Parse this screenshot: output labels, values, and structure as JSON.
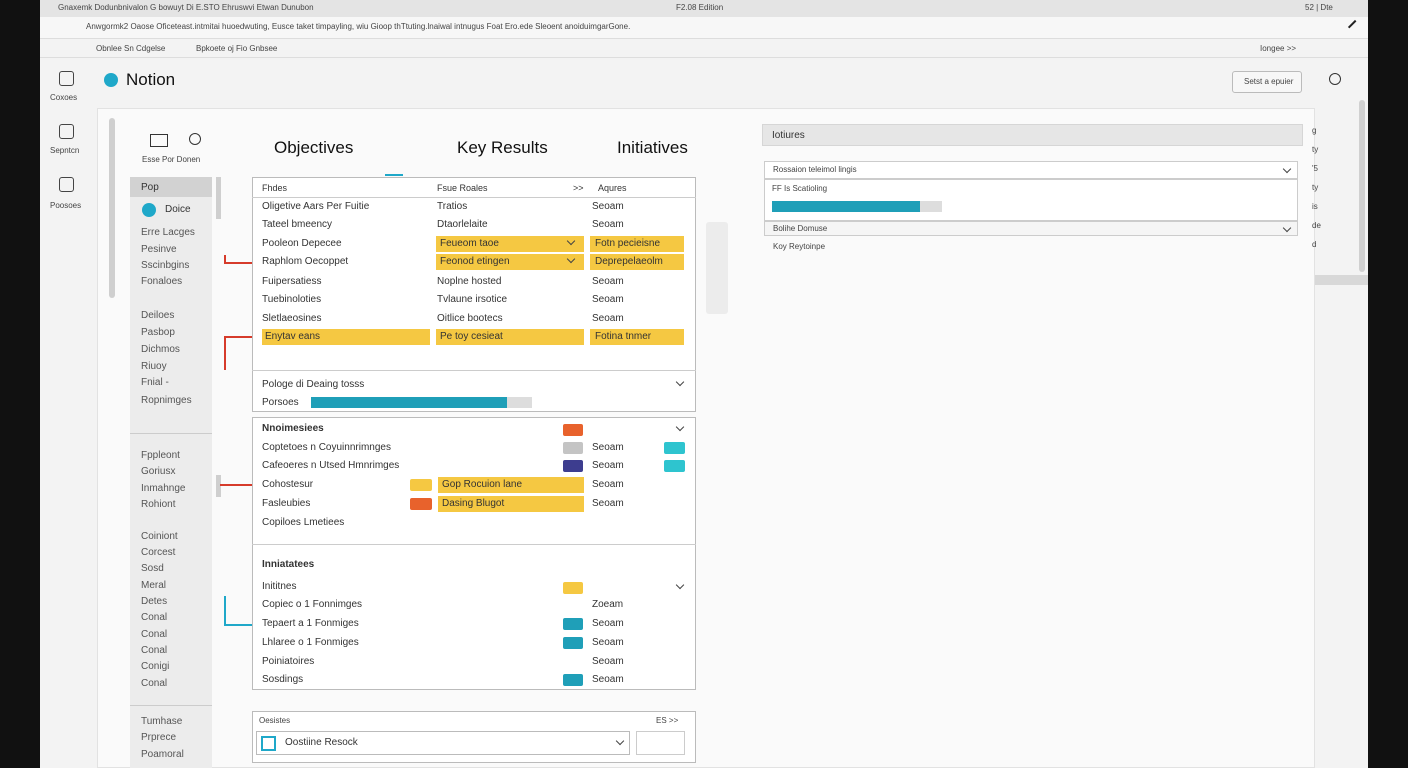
{
  "system_bar": {
    "left": "Gnaxemk Dodunbnivalon   G bowuyt Di E.STO   Ehruswvi Etwan Dunubon",
    "center": "F2.08 Edition",
    "right": "52 | Dte"
  },
  "address_bar": {
    "url": "Anwgormk2  Oaose Oficeteast.intmitai huoedwuting, Eusce taket timpayling, wiu Gioop thTtuting.lnaiwal intnugus Foat Ero.ede Sleoent anoiduimgarGone."
  },
  "bookmarks": {
    "items": [
      "Obnlee Sn Cdgelse",
      "Bpkoete oj Fio Gnbsee"
    ],
    "right": "Iongee >>"
  },
  "app": {
    "name": "Notion",
    "action": "Setst a epuier"
  },
  "rail": [
    "Coxoes",
    "Sepntcn",
    "Poosoes"
  ],
  "sidebar": {
    "header": "Esse Por Donen",
    "selected": "Pop",
    "active": "Doice",
    "groups": [
      [
        "Erre Lacges",
        "Pesinve",
        "Sscinbgins",
        "Fonaloes"
      ],
      [
        "Deiloes",
        "Pasbop",
        "Dichmos",
        "Riuoy",
        "Fnial -",
        "Ropnimges"
      ],
      [
        "Fppleont",
        "Goriusx",
        "Inmahnge",
        "Rohiont"
      ],
      [
        "Coiniont",
        "Corcest",
        "Sosd",
        "Meral",
        "Detes",
        "Conal",
        "Conal",
        "Conal",
        "Conigi",
        "Conal"
      ],
      [
        "Tumhase",
        "Prprece",
        "Poamoral"
      ]
    ]
  },
  "columns": [
    "Objectives",
    "Key Results",
    "Initiatives"
  ],
  "okr_table": {
    "header": [
      "Fhdes",
      "Fsue Roales",
      ">>",
      "Aqures"
    ],
    "rows": [
      {
        "cells": [
          "Oligetive Aars Per Fuitie",
          "Tratios",
          "Seoam"
        ],
        "hl": [
          false,
          false,
          false
        ]
      },
      {
        "cells": [
          "Tateel bmeency",
          "Dtaorlelaite",
          "Seoam"
        ],
        "hl": [
          false,
          false,
          false
        ]
      },
      {
        "cells": [
          "Pooleon Depecee",
          "Feueom taoe",
          "Fotn pecieisne"
        ],
        "hl": [
          false,
          true,
          true
        ]
      },
      {
        "cells": [
          "Raphlom Oecoppet",
          "Feonod etingen",
          "Deprepelaeolm"
        ],
        "hl": [
          false,
          true,
          true
        ]
      },
      {
        "cells": [
          "Fuipersatiess",
          "Noplne hosted",
          "Seoam"
        ],
        "hl": [
          false,
          false,
          false
        ]
      },
      {
        "cells": [
          "Tuebinoloties",
          "Tvlaune irsotice",
          "Seoam"
        ],
        "hl": [
          false,
          false,
          false
        ]
      },
      {
        "cells": [
          "Sletlaeosines",
          "Oitlice bootecs",
          "Seoam"
        ],
        "hl": [
          false,
          false,
          false
        ]
      },
      {
        "cells": [
          "Enytav eans",
          "Pe toy cesieat",
          "Fotina tnmer"
        ],
        "hl": [
          true,
          true,
          true
        ]
      }
    ]
  },
  "progress": {
    "title": "Pologe di Deaing tosss",
    "label": "Porsoes"
  },
  "milestones": {
    "title": "Nnoimesiees",
    "title_color": "#e8622c",
    "rows": [
      {
        "name": "Coptetoes n Coyuinnrimnges",
        "swatch": "#c4c4c4",
        "status": "Seoam",
        "end": "#2ec4cf"
      },
      {
        "name": "Cafeoeres n Utsed Hmnrimges",
        "swatch": "#3d3d8f",
        "status": "Seoam",
        "end": "#2ec4cf"
      },
      {
        "name": "Cohostesur",
        "swatch": "#f5c842",
        "tag": "Gop Rocuion lane",
        "status": "Seoam"
      },
      {
        "name": "Fasleubies",
        "swatch": "#e8622c",
        "tag": "Dasing Blugot",
        "status": "Seoam"
      },
      {
        "name": "Copiloes Lmetiees"
      }
    ]
  },
  "initiatives": {
    "heading": "Inniatatees",
    "title": "Inititnes",
    "title_color": "#f5c842",
    "rows": [
      {
        "name": "Copiec o 1 Fonnimges",
        "status": "Zoeam"
      },
      {
        "name": "Tepaert a 1 Fonmiges",
        "swatch": "#1f9fb8",
        "status": "Seoam"
      },
      {
        "name": "Lhlaree o 1 Fonmiges",
        "swatch": "#1f9fb8",
        "status": "Seoam"
      },
      {
        "name": "Poiniatoires",
        "status": "Seoam"
      },
      {
        "name": "Sosdings",
        "swatch": "#1f9fb8",
        "status": "Seoam"
      }
    ]
  },
  "bottom": {
    "label": "Oesistes",
    "nav": "ES >>",
    "select": "Oostiine Resock"
  },
  "right_panel": {
    "title": "Iotiures",
    "select": "Rossaion teleimol lingis",
    "sub": "FF Is Scatioling",
    "select2": "Bolihe Domuse",
    "item": "Koy Reytoinpe"
  },
  "edge_text": [
    "g",
    "ty",
    "'5",
    "ty",
    "is",
    "de",
    "d"
  ]
}
